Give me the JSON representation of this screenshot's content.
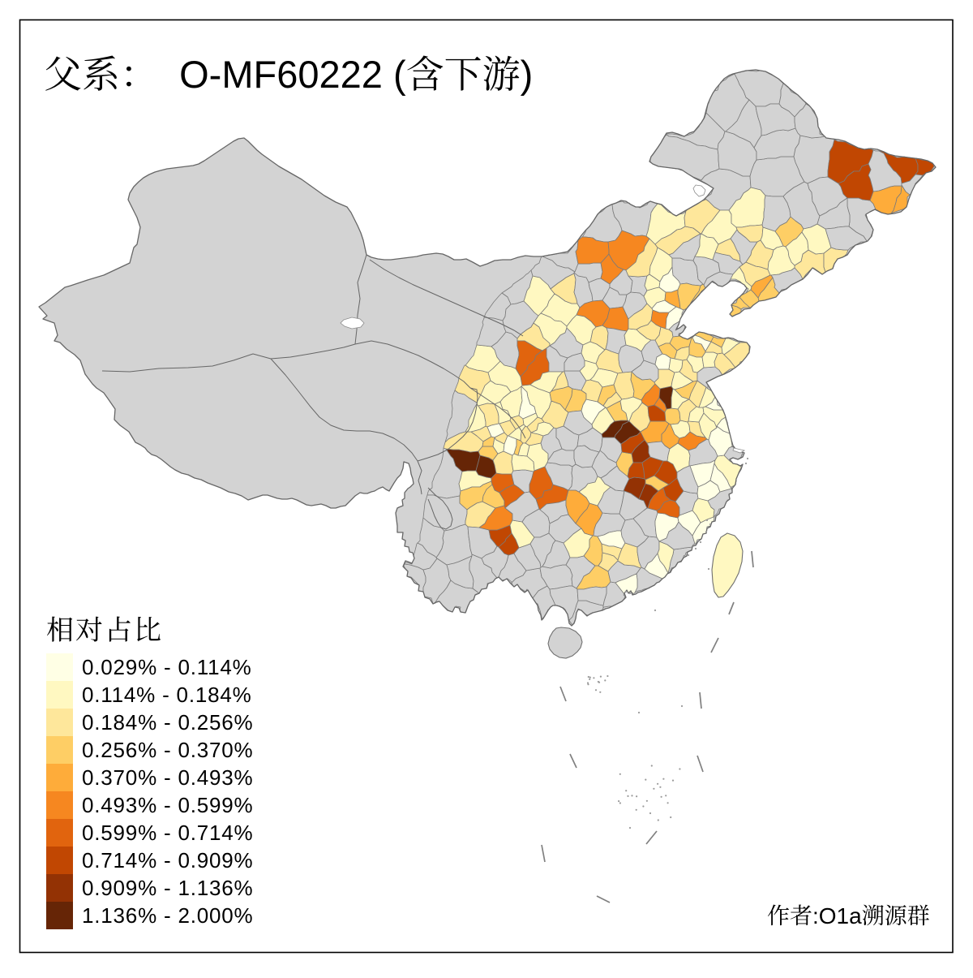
{
  "title": {
    "text": "父系：  O-MF60222 (含下游)"
  },
  "legend": {
    "title": "相对占比",
    "classes": [
      {
        "label": "0.029% - 0.114%",
        "color": "#FFFFE5"
      },
      {
        "label": "0.114% - 0.184%",
        "color": "#FFF8C1"
      },
      {
        "label": "0.184% - 0.256%",
        "color": "#FEE79B"
      },
      {
        "label": "0.256% - 0.370%",
        "color": "#FECE65"
      },
      {
        "label": "0.370% - 0.493%",
        "color": "#FEAC3A"
      },
      {
        "label": "0.493% - 0.599%",
        "color": "#F68720"
      },
      {
        "label": "0.599% - 0.714%",
        "color": "#E1640E"
      },
      {
        "label": "0.714% - 0.909%",
        "color": "#C14702"
      },
      {
        "label": "0.909% - 1.136%",
        "color": "#933204"
      },
      {
        "label": "1.136% - 2.000%",
        "color": "#662506"
      }
    ]
  },
  "credit": {
    "text": "作者:O1a溯源群"
  },
  "map": {
    "region": "China, prefecture level",
    "nodata_fill": "#D3D3D3",
    "sea_fill": "#FFFFFF",
    "boundary_color": "#6F6F6F",
    "cell_boundary_color": "#8C8C8C",
    "frame_color": "#000000",
    "taiwan_class": 2,
    "dash_line_color": "#808080"
  }
}
